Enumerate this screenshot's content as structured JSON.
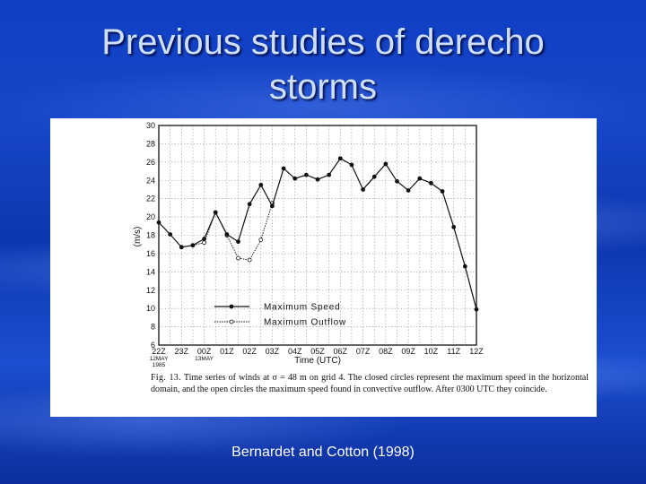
{
  "slide": {
    "title_line1": "Previous studies of derecho",
    "title_line2": "storms",
    "credit": "Bernardet and Cotton (1998)"
  },
  "caption": {
    "label": "Fig. 13.",
    "text": "Time series of winds at σ = 48 m on grid 4. The closed circles represent the maximum speed in the horizontal domain, and the open circles the maximum speed found in convective outflow. After 0300 UTC they coincide."
  },
  "chart_data": {
    "type": "line",
    "ylabel": "(m/s)",
    "xlabel": "Time (UTC)",
    "ylim": [
      6,
      30
    ],
    "yticks": [
      6,
      8,
      10,
      12,
      14,
      16,
      18,
      20,
      22,
      24,
      26,
      28,
      30
    ],
    "xticks": [
      "22Z",
      "23Z",
      "00Z",
      "01Z",
      "02Z",
      "03Z",
      "04Z",
      "05Z",
      "06Z",
      "07Z",
      "08Z",
      "09Z",
      "10Z",
      "11Z",
      "12Z"
    ],
    "xtick_sublabels": [
      {
        "at": "22Z",
        "lines": [
          "12MAY",
          "1985"
        ]
      },
      {
        "at": "00Z",
        "lines": [
          "13MAY"
        ]
      }
    ],
    "grid": true,
    "legend_position": "lower-left",
    "series": [
      {
        "name": "Maximum Speed",
        "marker": "filled-circle",
        "line": "solid",
        "x": [
          0,
          0.5,
          1,
          1.5,
          2,
          2.5,
          3,
          3.5,
          4,
          4.5,
          5,
          5.5,
          6,
          6.5,
          7,
          7.5,
          8,
          8.5,
          9,
          9.5,
          10,
          10.5,
          11,
          11.5,
          12,
          12.5,
          13,
          13.5,
          14
        ],
        "values": [
          19.4,
          18.1,
          16.7,
          16.9,
          17.6,
          20.5,
          18.1,
          17.3,
          21.4,
          23.5,
          21.2,
          25.3,
          24.2,
          24.6,
          24.1,
          24.6,
          26.4,
          25.7,
          23.0,
          24.4,
          25.8,
          23.9,
          22.9,
          24.2,
          23.7,
          22.8,
          18.9,
          14.6,
          9.9
        ]
      },
      {
        "name": "Maximum Outflow",
        "marker": "open-circle",
        "line": "dotted",
        "x": [
          1,
          1.5,
          2,
          2.5,
          3,
          3.5,
          4,
          4.5,
          5
        ],
        "values": [
          16.7,
          16.9,
          17.2,
          20.5,
          18.0,
          15.5,
          15.3,
          17.5,
          21.5
        ]
      }
    ]
  }
}
